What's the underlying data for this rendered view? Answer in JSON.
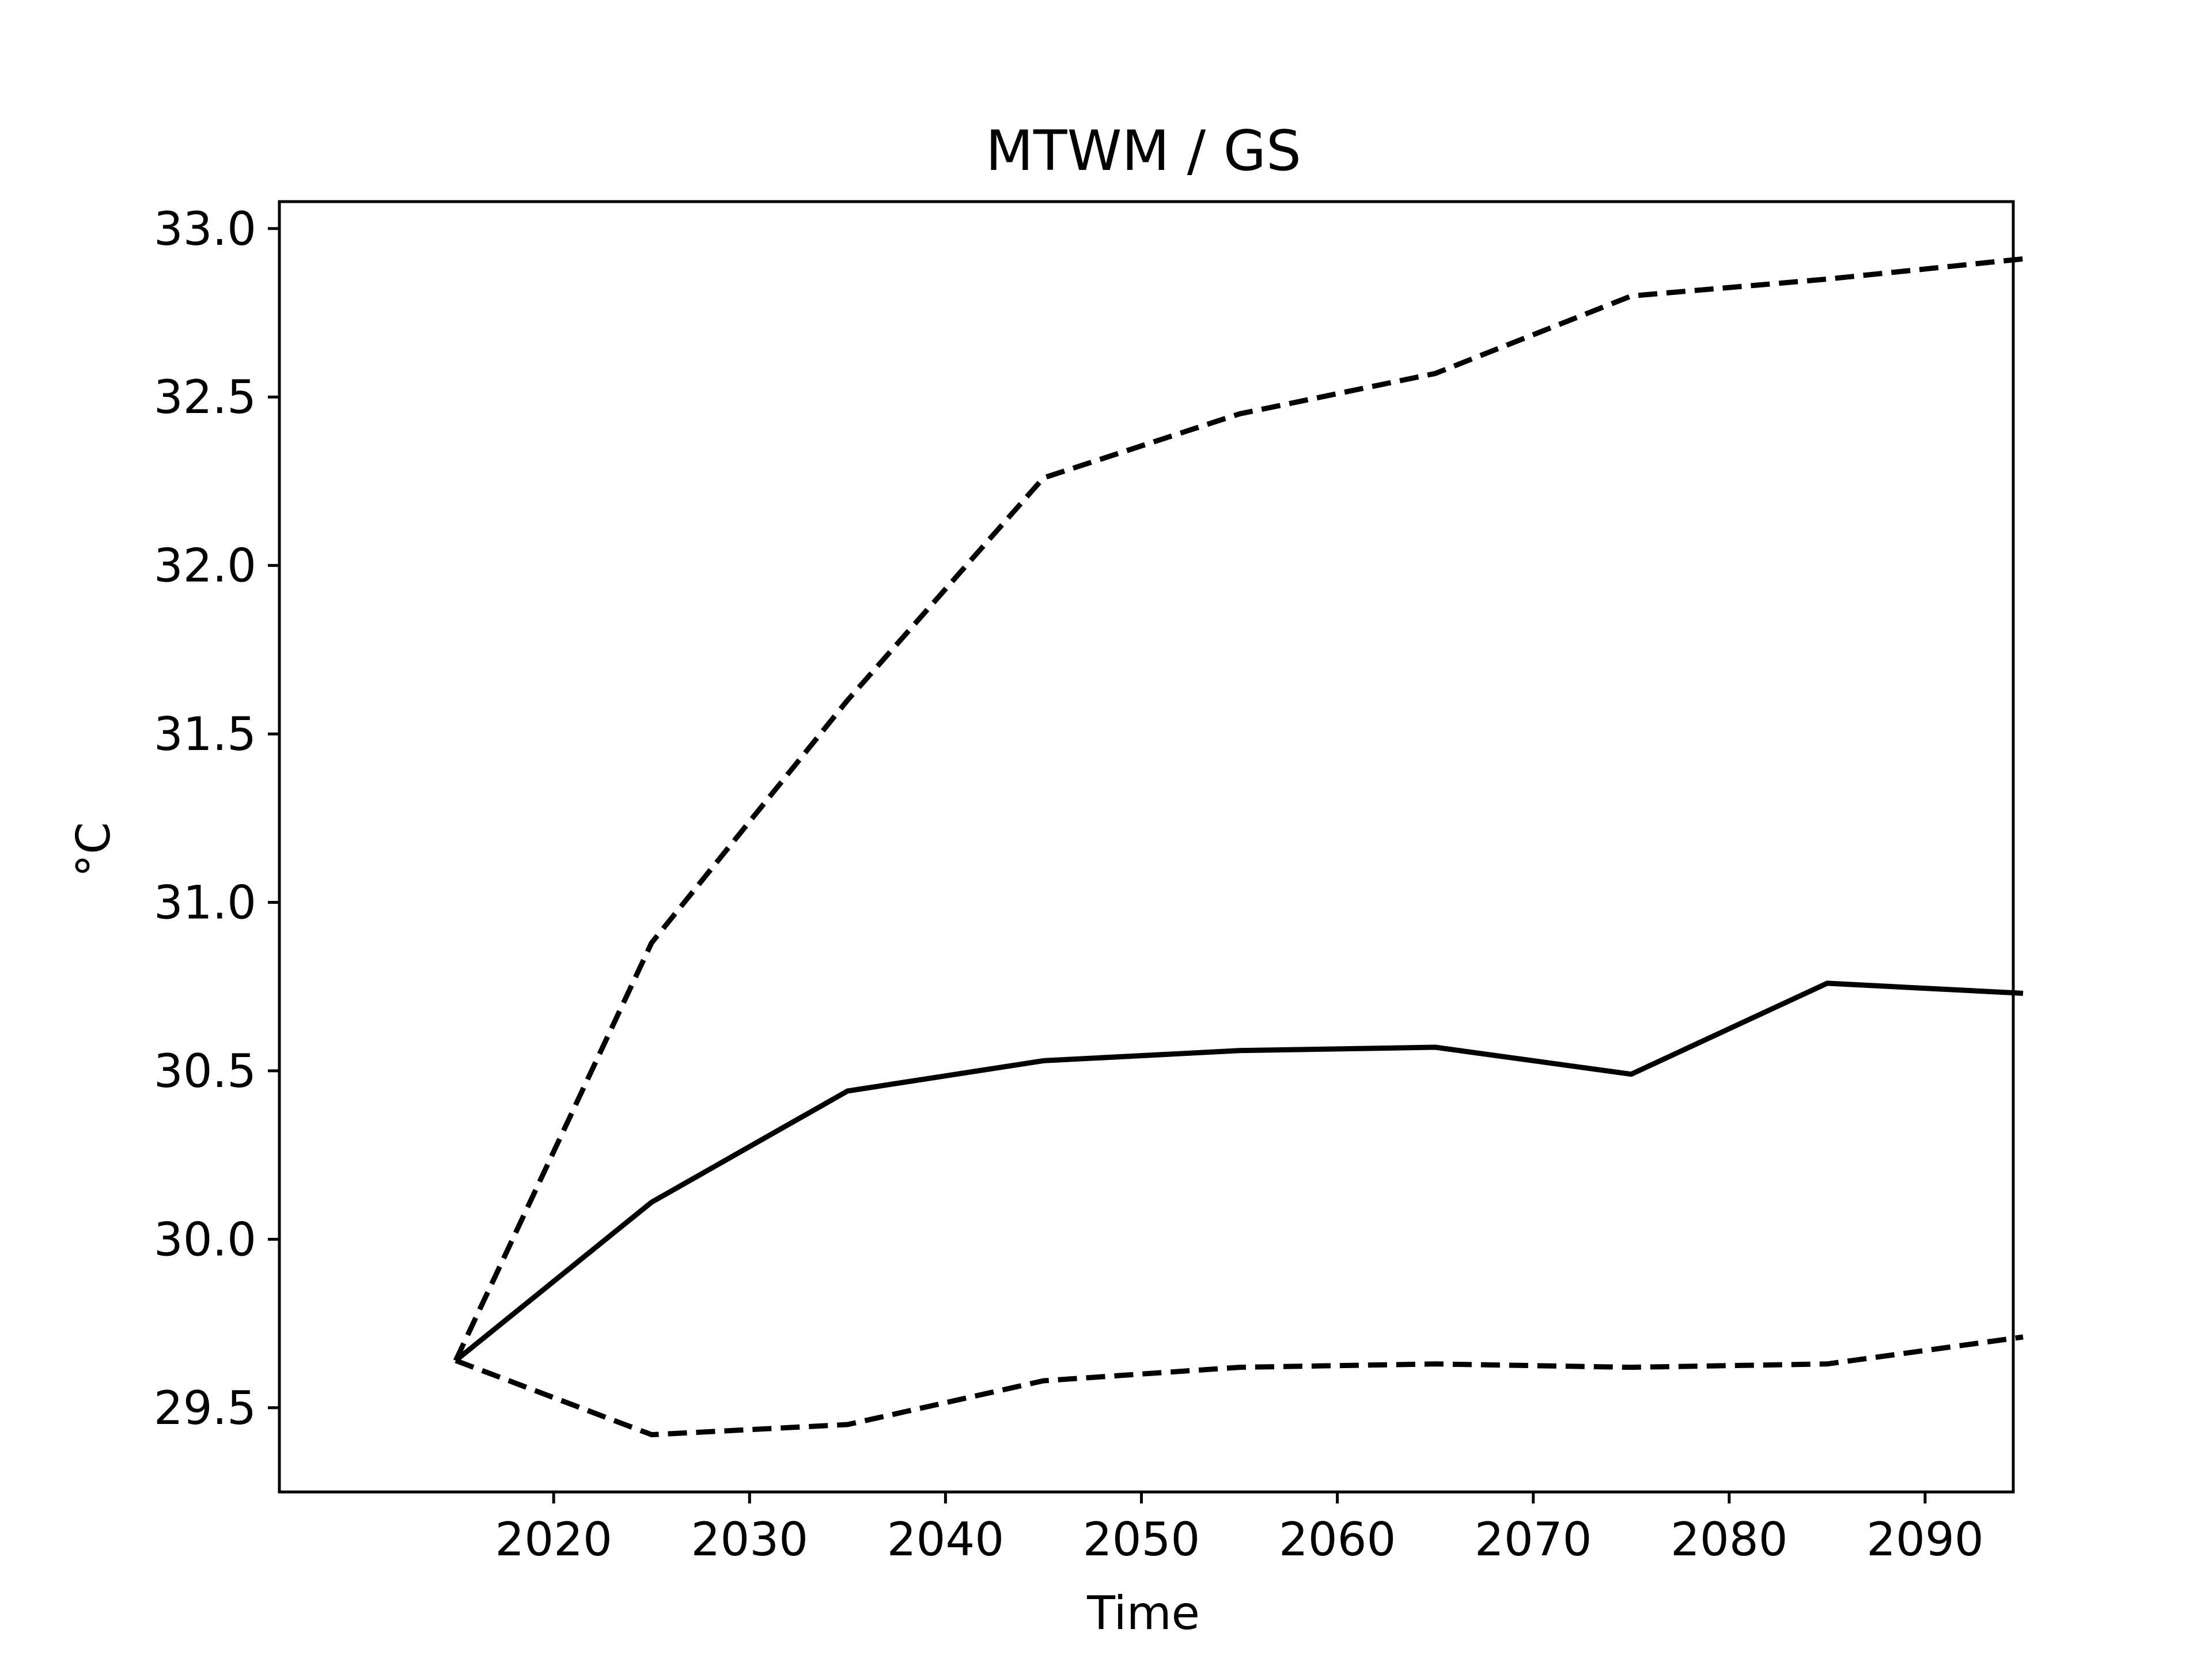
{
  "chart_data": {
    "type": "line",
    "title": "MTWM / GS",
    "xlabel": "Time",
    "ylabel": "°C",
    "x": [
      2015,
      2025,
      2035,
      2045,
      2055,
      2065,
      2075,
      2085,
      2095
    ],
    "xlim": [
      2006,
      2094.5
    ],
    "ylim": [
      29.25,
      33.08
    ],
    "xticks": [
      2020,
      2030,
      2040,
      2050,
      2060,
      2070,
      2080,
      2090
    ],
    "xtick_labels": [
      "2020",
      "2030",
      "2040",
      "2050",
      "2060",
      "2070",
      "2080",
      "2090"
    ],
    "yticks": [
      29.5,
      30.0,
      30.5,
      31.0,
      31.5,
      32.0,
      32.5,
      33.0
    ],
    "ytick_labels": [
      "29.5",
      "30.0",
      "30.5",
      "31.0",
      "31.5",
      "32.0",
      "32.5",
      "33.0"
    ],
    "grid": false,
    "series": [
      {
        "style": "solid",
        "color": "#000000",
        "values": [
          29.64,
          30.11,
          30.44,
          30.53,
          30.56,
          30.57,
          30.49,
          30.76,
          30.73
        ]
      },
      {
        "style": "dashed",
        "color": "#000000",
        "values": [
          29.64,
          30.88,
          31.6,
          32.26,
          32.45,
          32.57,
          32.8,
          32.85,
          32.91
        ]
      },
      {
        "style": "dashed",
        "color": "#000000",
        "values": [
          29.64,
          29.42,
          29.45,
          29.58,
          29.62,
          29.63,
          29.62,
          29.63,
          29.71
        ]
      }
    ]
  }
}
